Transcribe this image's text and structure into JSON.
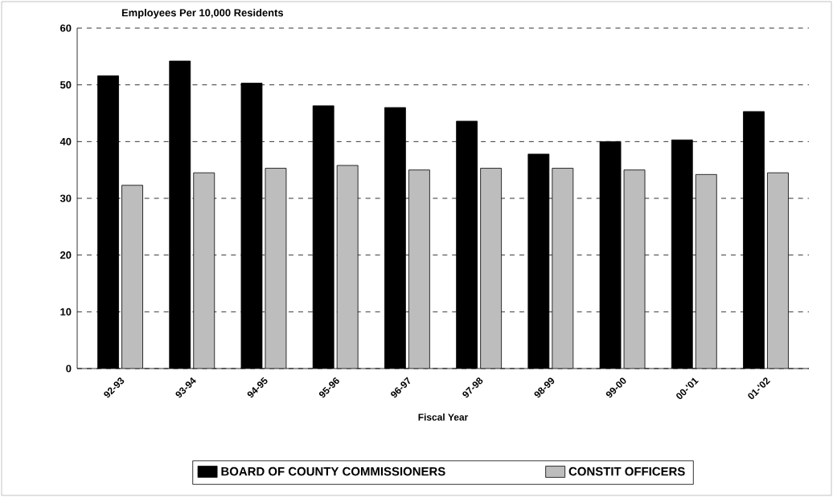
{
  "chart_data": {
    "type": "bar",
    "title": "Employees Per 10,000 Residents",
    "xlabel": "Fiscal Year",
    "categories": [
      "92-93",
      "93-94",
      "94-95",
      "95-96",
      "96-97",
      "97-98",
      "98-99",
      "99-00",
      "00-'01",
      "01-'02"
    ],
    "series": [
      {
        "name": "BOARD OF COUNTY COMMISSIONERS",
        "color": "#000000",
        "values": [
          51.6,
          54.2,
          50.3,
          46.3,
          46,
          43.6,
          37.8,
          40,
          40.3,
          45.3
        ]
      },
      {
        "name": "CONSTIT OFFICERS",
        "color": "#bdbdbd",
        "values": [
          32.3,
          34.5,
          35.3,
          35.8,
          35,
          35.3,
          35.3,
          35,
          34.2,
          34.5
        ]
      }
    ],
    "ylim": [
      0,
      60
    ],
    "yticks": [
      0,
      10,
      20,
      30,
      40,
      50,
      60
    ],
    "grid": "y",
    "legend": "bottom"
  }
}
